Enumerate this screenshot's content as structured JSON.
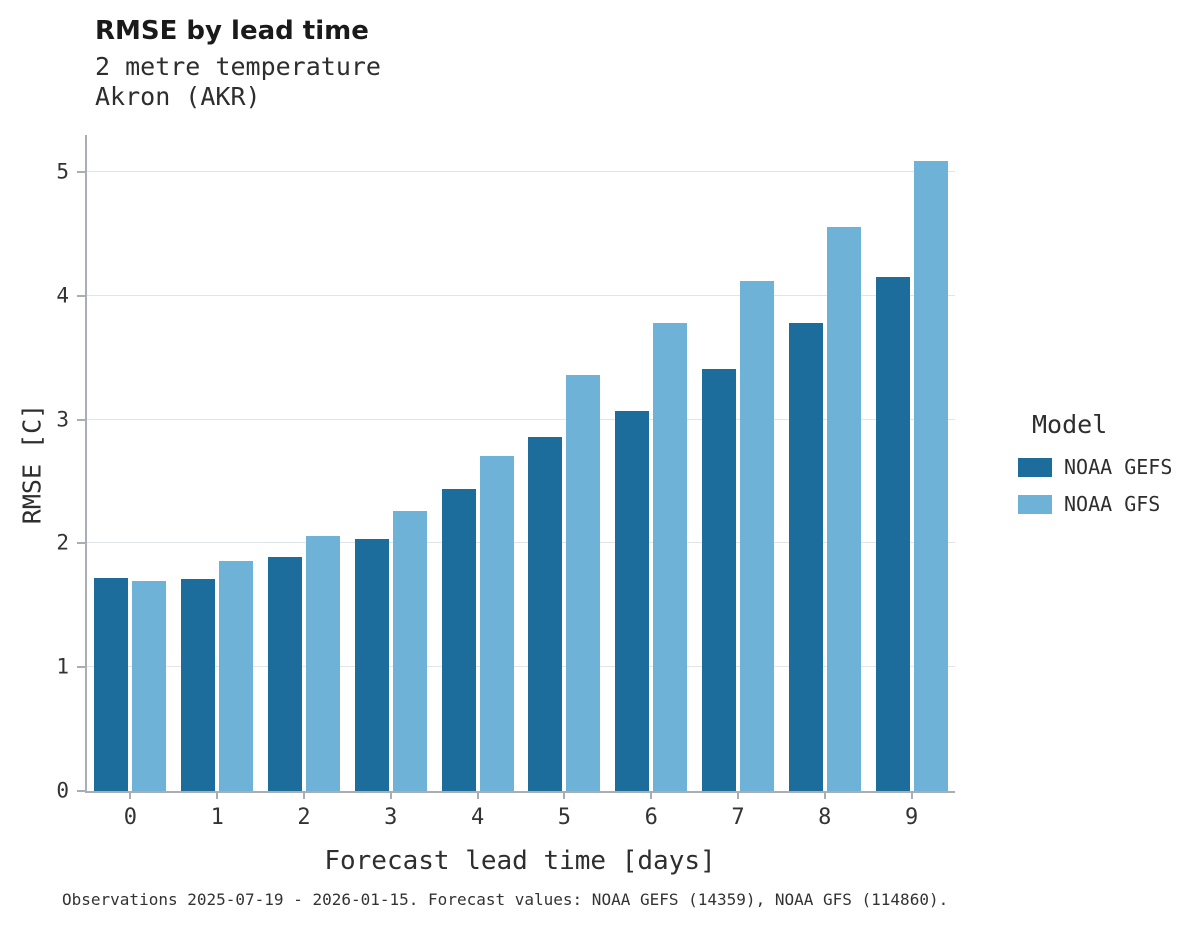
{
  "header": {
    "title": "RMSE by lead time",
    "subtitle_line1": "2 metre temperature",
    "subtitle_line2": "Akron (AKR)"
  },
  "chart_data": {
    "type": "bar",
    "title": "RMSE by lead time",
    "subtitle": [
      "2 metre temperature",
      "Akron (AKR)"
    ],
    "xlabel": "Forecast lead time [days]",
    "ylabel": "RMSE [C]",
    "categories": [
      "0",
      "1",
      "2",
      "3",
      "4",
      "5",
      "6",
      "7",
      "8",
      "9"
    ],
    "series": [
      {
        "name": "NOAA GEFS",
        "color": "#1d6d9c",
        "values": [
          1.72,
          1.71,
          1.89,
          2.04,
          2.44,
          2.86,
          3.07,
          3.41,
          3.78,
          4.15
        ]
      },
      {
        "name": "NOAA GFS",
        "color": "#6fb2d8",
        "values": [
          1.7,
          1.86,
          2.06,
          2.26,
          2.71,
          3.36,
          3.78,
          4.12,
          4.56,
          5.09
        ]
      }
    ],
    "ylim": [
      0,
      5.3
    ],
    "yticks": [
      0,
      1,
      2,
      3,
      4,
      5
    ],
    "grid": "horizontal",
    "legend": {
      "title": "Model",
      "position": "right"
    }
  },
  "caption": "Observations 2025-07-19 - 2026-01-15. Forecast values: NOAA GEFS (14359), NOAA GFS (114860)."
}
